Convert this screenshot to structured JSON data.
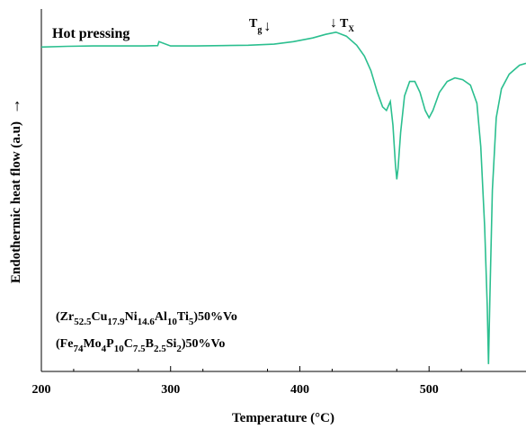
{
  "chart_data": {
    "type": "line",
    "title": "",
    "xlabel": "Temperature (°C)",
    "ylabel": "Endothermic heat flow (a.u)",
    "ylabel_arrow": "→",
    "xlim": [
      200,
      575
    ],
    "ylim": [
      0,
      1
    ],
    "grid": false,
    "x_ticks": [
      200,
      300,
      400,
      500
    ],
    "x_tick_labels": [
      "200",
      "300",
      "400",
      "500"
    ],
    "annotations": {
      "condition": "Hot pressing",
      "tg": {
        "symbol": "T",
        "sub": "g",
        "arrow": "↓",
        "x": 375
      },
      "tx": {
        "symbol": "T",
        "sub": "X",
        "arrow": "↓",
        "x": 428
      }
    },
    "composition_1": [
      {
        "t": "(Zr",
        "sub": false
      },
      {
        "t": "52.5",
        "sub": true
      },
      {
        "t": "Cu",
        "sub": false
      },
      {
        "t": "17.9",
        "sub": true
      },
      {
        "t": "Ni",
        "sub": false
      },
      {
        "t": "14.6",
        "sub": true
      },
      {
        "t": "Al",
        "sub": false
      },
      {
        "t": "10",
        "sub": true
      },
      {
        "t": "Ti",
        "sub": false
      },
      {
        "t": "5",
        "sub": true
      },
      {
        "t": ")50%Vo",
        "sub": false
      }
    ],
    "composition_2": [
      {
        "t": "(Fe",
        "sub": false
      },
      {
        "t": "74",
        "sub": true
      },
      {
        "t": "Mo",
        "sub": false
      },
      {
        "t": "4",
        "sub": true
      },
      {
        "t": "P",
        "sub": false
      },
      {
        "t": "10",
        "sub": true
      },
      {
        "t": "C",
        "sub": false
      },
      {
        "t": "7.5",
        "sub": true
      },
      {
        "t": "B",
        "sub": false
      },
      {
        "t": "2.5",
        "sub": true
      },
      {
        "t": "Si",
        "sub": false
      },
      {
        "t": "2",
        "sub": true
      },
      {
        "t": ")50%Vo",
        "sub": false
      }
    ],
    "series": [
      {
        "color": "#2bbf8f",
        "x": [
          200,
          220,
          240,
          260,
          280,
          290,
          291,
          300,
          320,
          340,
          360,
          380,
          395,
          410,
          420,
          428,
          436,
          444,
          450,
          455,
          460,
          464,
          467,
          470,
          472,
          474,
          475,
          476,
          478,
          481,
          485,
          489,
          493,
          497,
          500,
          503,
          508,
          514,
          520,
          526,
          532,
          537,
          540,
          543,
          545,
          546,
          547,
          549,
          552,
          556,
          562,
          570,
          575
        ],
        "y": [
          0.895,
          0.897,
          0.898,
          0.898,
          0.898,
          0.899,
          0.91,
          0.898,
          0.898,
          0.899,
          0.9,
          0.903,
          0.91,
          0.92,
          0.93,
          0.936,
          0.925,
          0.9,
          0.87,
          0.83,
          0.77,
          0.73,
          0.72,
          0.745,
          0.68,
          0.57,
          0.53,
          0.56,
          0.66,
          0.76,
          0.8,
          0.8,
          0.77,
          0.72,
          0.7,
          0.72,
          0.77,
          0.8,
          0.81,
          0.805,
          0.79,
          0.74,
          0.62,
          0.4,
          0.18,
          0.02,
          0.2,
          0.5,
          0.7,
          0.78,
          0.82,
          0.845,
          0.85
        ]
      }
    ]
  }
}
